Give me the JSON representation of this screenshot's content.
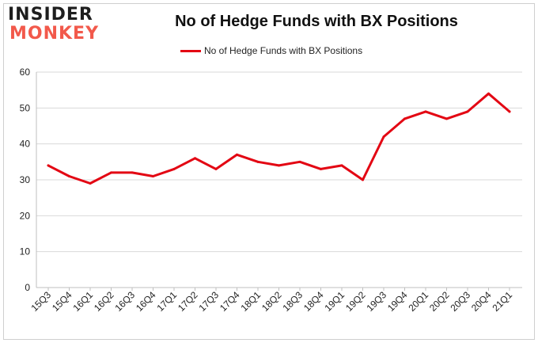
{
  "logo": {
    "line1": "INSIDER",
    "line2": "MONKEY"
  },
  "title": "No of Hedge Funds with BX Positions",
  "colors": {
    "series": "#e30613",
    "grid": "#d9d9d9",
    "axis": "#bfbfbf",
    "logo_accent": "#f2594b"
  },
  "chart_data": {
    "type": "line",
    "title": "No of Hedge Funds with BX Positions",
    "xlabel": "",
    "ylabel": "",
    "categories": [
      "15Q3",
      "15Q4",
      "16Q1",
      "16Q2",
      "16Q3",
      "16Q4",
      "17Q1",
      "17Q2",
      "17Q3",
      "17Q4",
      "18Q1",
      "18Q2",
      "18Q3",
      "18Q4",
      "19Q1",
      "19Q2",
      "19Q3",
      "19Q4",
      "20Q1",
      "20Q2",
      "20Q3",
      "20Q4",
      "21Q1"
    ],
    "series": [
      {
        "name": "No of Hedge Funds with BX Positions",
        "values": [
          34,
          31,
          29,
          32,
          32,
          31,
          33,
          36,
          33,
          37,
          35,
          34,
          35,
          33,
          34,
          30,
          42,
          47,
          49,
          47,
          49,
          54,
          49
        ]
      }
    ],
    "ylim": [
      0,
      60
    ],
    "yticks": [
      0,
      10,
      20,
      30,
      40,
      50,
      60
    ],
    "grid": true,
    "legend_position": "top-center"
  }
}
